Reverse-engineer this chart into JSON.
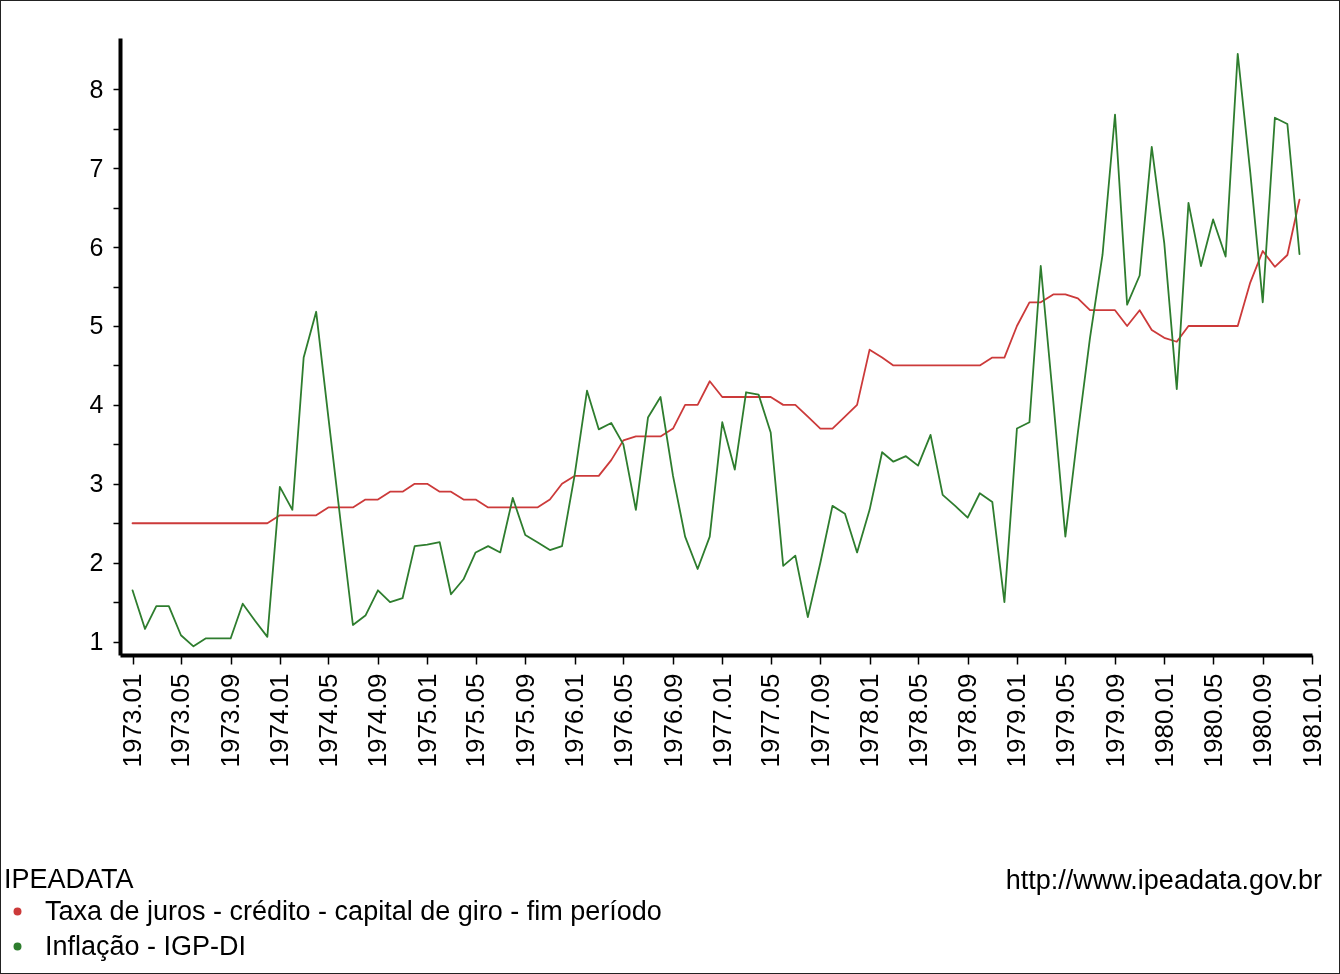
{
  "chart_data": {
    "type": "line",
    "legend_title": "IPEADATA",
    "legend": "bottom left",
    "annotations": [
      "http://www.ipeadata.gov.br"
    ],
    "x": [
      "1973-01",
      "1973-02",
      "1973-03",
      "1973-04",
      "1973-05",
      "1973-06",
      "1973-07",
      "1973-08",
      "1973-09",
      "1973-10",
      "1973-11",
      "1973-12",
      "1974-01",
      "1974-02",
      "1974-03",
      "1974-04",
      "1974-05",
      "1974-06",
      "1974-07",
      "1974-08",
      "1974-09",
      "1974-10",
      "1974-11",
      "1974-12",
      "1975-01",
      "1975-02",
      "1975-03",
      "1975-04",
      "1975-05",
      "1975-06",
      "1975-07",
      "1975-08",
      "1975-09",
      "1975-10",
      "1975-11",
      "1975-12",
      "1976-01",
      "1976-02",
      "1976-03",
      "1976-04",
      "1976-05",
      "1976-06",
      "1976-07",
      "1976-08",
      "1976-09",
      "1976-10",
      "1976-11",
      "1976-12",
      "1977-01",
      "1977-02",
      "1977-03",
      "1977-04",
      "1977-05",
      "1977-06",
      "1977-07",
      "1977-08",
      "1977-09",
      "1977-10",
      "1977-11",
      "1977-12",
      "1978-01",
      "1978-02",
      "1978-03",
      "1978-04",
      "1978-05",
      "1978-06",
      "1978-07",
      "1978-08",
      "1978-09",
      "1978-10",
      "1978-11",
      "1978-12",
      "1979-01",
      "1979-02",
      "1979-03",
      "1979-04",
      "1979-05",
      "1979-06",
      "1979-07",
      "1979-08",
      "1979-09",
      "1979-10",
      "1979-11",
      "1979-12",
      "1980-01",
      "1980-02",
      "1980-03",
      "1980-04",
      "1980-05",
      "1980-06",
      "1980-07",
      "1980-08",
      "1980-09",
      "1980-10",
      "1980-11",
      "1980-12"
    ],
    "xlim": [
      "1972-12",
      "1981-01"
    ],
    "xticks": [
      {
        "value": "1973-01",
        "label": "1973.01"
      },
      {
        "value": "1973-05",
        "label": "1973.05"
      },
      {
        "value": "1973-09",
        "label": "1973.09"
      },
      {
        "value": "1974-01",
        "label": "1974.01"
      },
      {
        "value": "1974-05",
        "label": "1974.05"
      },
      {
        "value": "1974-09",
        "label": "1974.09"
      },
      {
        "value": "1975-01",
        "label": "1975.01"
      },
      {
        "value": "1975-05",
        "label": "1975.05"
      },
      {
        "value": "1975-09",
        "label": "1975.09"
      },
      {
        "value": "1976-01",
        "label": "1976.01"
      },
      {
        "value": "1976-05",
        "label": "1976.05"
      },
      {
        "value": "1976-09",
        "label": "1976.09"
      },
      {
        "value": "1977-01",
        "label": "1977.01"
      },
      {
        "value": "1977-05",
        "label": "1977.05"
      },
      {
        "value": "1977-09",
        "label": "1977.09"
      },
      {
        "value": "1978-01",
        "label": "1978.01"
      },
      {
        "value": "1978-05",
        "label": "1978.05"
      },
      {
        "value": "1978-09",
        "label": "1978.09"
      },
      {
        "value": "1979-01",
        "label": "1979.01"
      },
      {
        "value": "1979-05",
        "label": "1979.05"
      },
      {
        "value": "1979-09",
        "label": "1979.09"
      },
      {
        "value": "1980-01",
        "label": "1980.01"
      },
      {
        "value": "1980-05",
        "label": "1980.05"
      },
      {
        "value": "1980-09",
        "label": "1980.09"
      },
      {
        "value": "1981-01",
        "label": "1981.01"
      }
    ],
    "ylim": [
      0.83,
      8.65
    ],
    "yticks": [
      1,
      {
        "value": 1.5,
        "label": null
      },
      2,
      {
        "value": 2.5,
        "label": null
      },
      3,
      {
        "value": 3.5,
        "label": null
      },
      4,
      {
        "value": 4.5,
        "label": null
      },
      5,
      {
        "value": 5.5,
        "label": null
      },
      6,
      {
        "value": 6.5,
        "label": null
      },
      7,
      {
        "value": 7.5,
        "label": null
      },
      8
    ],
    "series": [
      {
        "name": "Taxa de juros - crédito - capital de giro - fim período",
        "color": "#cc3a3a",
        "values": [
          2.5,
          2.5,
          2.5,
          2.5,
          2.5,
          2.5,
          2.5,
          2.5,
          2.5,
          2.5,
          2.5,
          2.5,
          2.6,
          2.6,
          2.6,
          2.6,
          2.7,
          2.7,
          2.7,
          2.8,
          2.8,
          2.9,
          2.9,
          3.0,
          3.0,
          2.9,
          2.9,
          2.8,
          2.8,
          2.7,
          2.7,
          2.7,
          2.7,
          2.7,
          2.8,
          3.0,
          3.1,
          3.1,
          3.1,
          3.3,
          3.55,
          3.6,
          3.6,
          3.6,
          3.7,
          4.0,
          4.0,
          4.3,
          4.1,
          4.1,
          4.1,
          4.1,
          4.1,
          4.0,
          4.0,
          3.85,
          3.7,
          3.7,
          3.85,
          4.0,
          4.7,
          4.6,
          4.5,
          4.5,
          4.5,
          4.5,
          4.5,
          4.5,
          4.5,
          4.5,
          4.6,
          4.6,
          5.0,
          5.3,
          5.3,
          5.4,
          5.4,
          5.35,
          5.2,
          5.2,
          5.2,
          5.0,
          5.2,
          4.95,
          4.85,
          4.8,
          5.0,
          5.0,
          5.0,
          5.0,
          5.0,
          5.55,
          5.95,
          5.75,
          5.9,
          6.6
        ]
      },
      {
        "name": "Inflação - IGP-DI",
        "color": "#2e7d2e",
        "values": [
          1.65,
          1.16,
          1.45,
          1.45,
          1.08,
          0.94,
          1.04,
          1.04,
          1.04,
          1.48,
          1.26,
          1.06,
          2.96,
          2.67,
          4.6,
          5.18,
          3.85,
          2.5,
          1.21,
          1.33,
          1.65,
          1.5,
          1.55,
          2.21,
          2.23,
          2.26,
          1.6,
          1.79,
          2.13,
          2.21,
          2.13,
          2.82,
          2.35,
          2.26,
          2.16,
          2.21,
          3.1,
          4.18,
          3.69,
          3.77,
          3.5,
          2.67,
          3.84,
          4.1,
          3.1,
          2.33,
          1.92,
          2.33,
          3.78,
          3.18,
          4.16,
          4.13,
          3.65,
          1.96,
          2.09,
          1.31,
          2.0,
          2.72,
          2.62,
          2.13,
          2.67,
          3.4,
          3.28,
          3.35,
          3.23,
          3.62,
          2.86,
          2.72,
          2.57,
          2.88,
          2.77,
          1.5,
          3.7,
          3.78,
          5.76,
          4.05,
          2.33,
          3.65,
          4.85,
          5.9,
          7.68,
          5.27,
          5.64,
          7.27,
          6.05,
          4.2,
          6.56,
          5.76,
          6.35,
          5.88,
          8.45,
          6.95,
          5.3,
          7.64,
          7.56,
          5.91
        ]
      }
    ]
  }
}
